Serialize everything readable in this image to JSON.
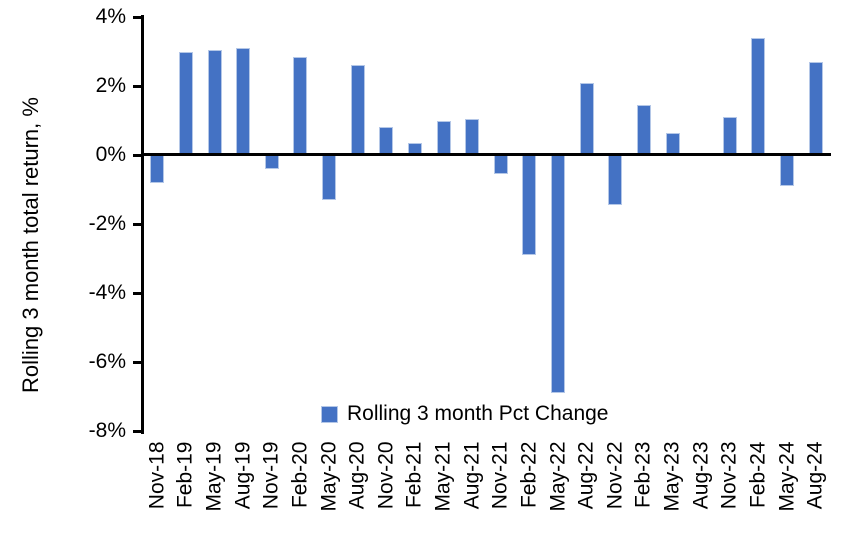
{
  "chart_data": {
    "type": "bar",
    "title": "",
    "xlabel": "",
    "ylabel": "Rolling 3 month total return, %",
    "categories": [
      "Nov-18",
      "Feb-19",
      "May-19",
      "Aug-19",
      "Nov-19",
      "Feb-20",
      "May-20",
      "Aug-20",
      "Nov-20",
      "Feb-21",
      "May-21",
      "Aug-21",
      "Nov-21",
      "Feb-22",
      "May-22",
      "Aug-22",
      "Nov-22",
      "Feb-23",
      "May-23",
      "Aug-23",
      "Nov-23",
      "Feb-24",
      "May-24",
      "Aug-24"
    ],
    "series": [
      {
        "name": "Rolling 3 month Pct Change",
        "values": [
          -0.8,
          3.0,
          3.05,
          3.1,
          -0.4,
          2.85,
          -1.3,
          2.6,
          0.8,
          0.35,
          1.0,
          1.05,
          -0.55,
          -2.9,
          -6.9,
          2.1,
          -1.45,
          1.45,
          0.65,
          0.0,
          1.1,
          3.4,
          -0.9,
          2.7
        ]
      }
    ],
    "ylim": [
      -8,
      4
    ],
    "ytick_step": 2,
    "ytick_labels": [
      "4%",
      "2%",
      "0%",
      "-2%",
      "-4%",
      "-6%",
      "-8%"
    ],
    "grid": false,
    "legend_position": "bottom-center",
    "colors": {
      "bar": "#4472C4",
      "bar_border": "#B4C7E7",
      "axis": "#000000",
      "text": "#000000",
      "background": "#FFFFFF"
    }
  }
}
